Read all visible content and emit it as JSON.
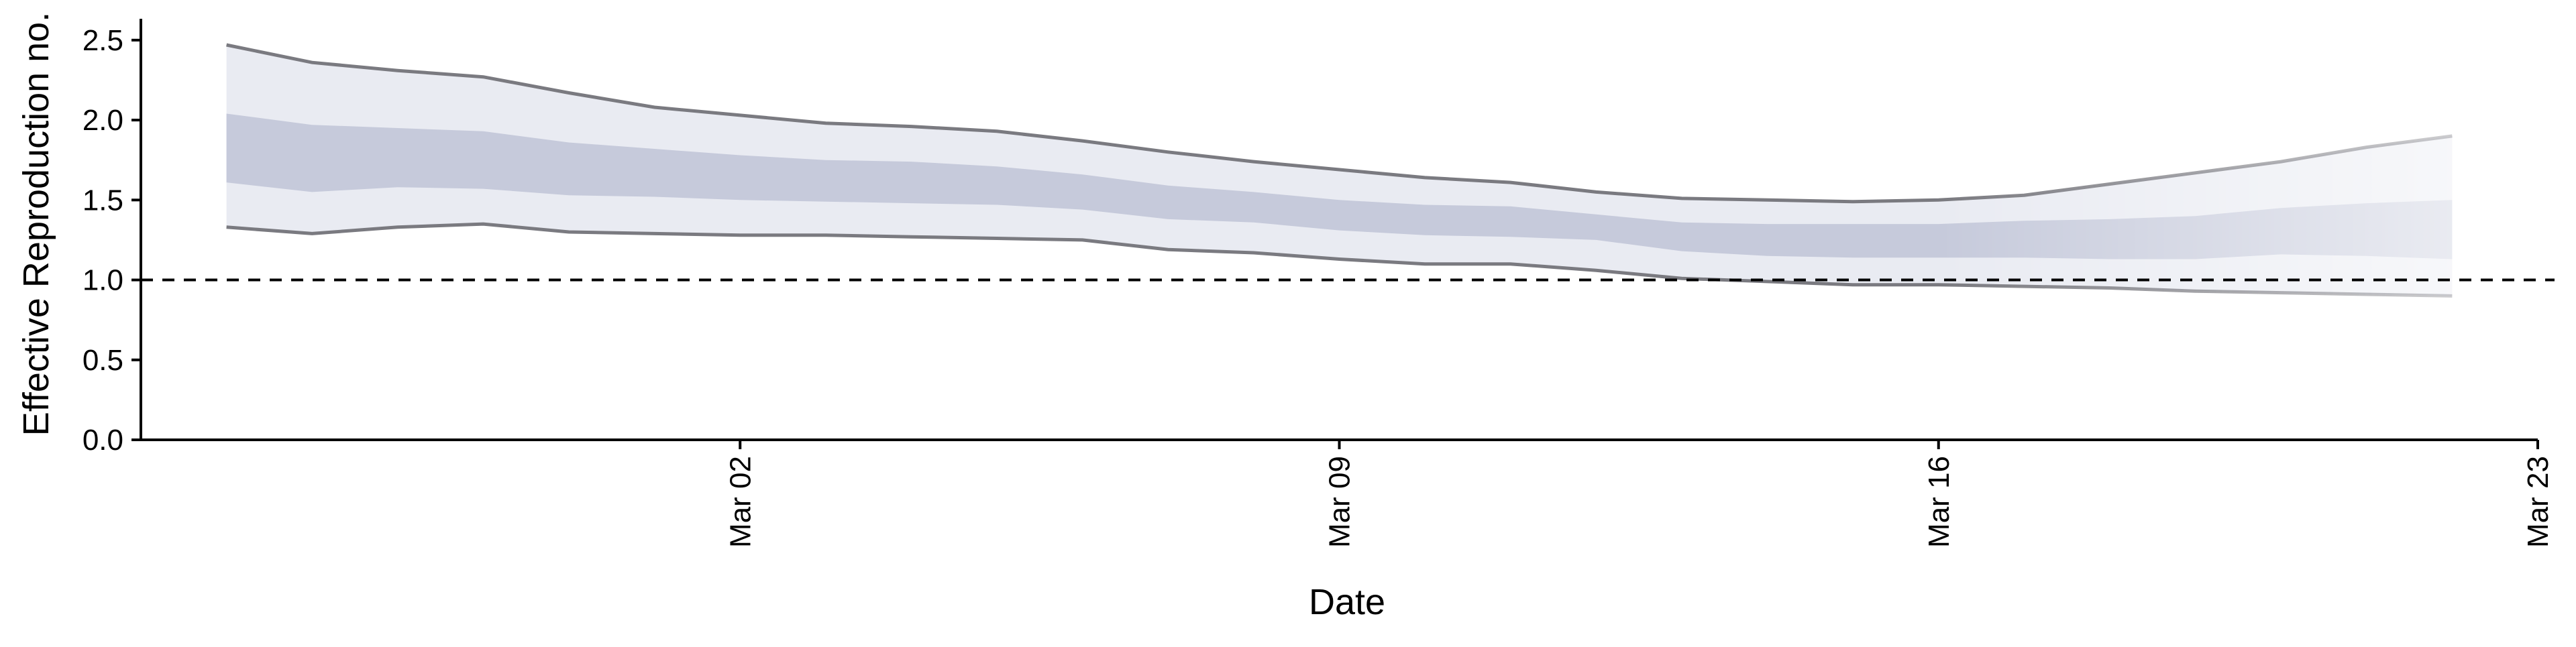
{
  "chart_data": {
    "type": "area",
    "title": "",
    "xlabel": "Date",
    "ylabel": "Effective Reproduction no.",
    "x_type": "date",
    "xlim": [
      "2020-02-24",
      "2020-03-23"
    ],
    "ylim": [
      0,
      2.6
    ],
    "x_ticks": [
      {
        "date": "2020-03-02",
        "label": "Mar 02"
      },
      {
        "date": "2020-03-09",
        "label": "Mar 09"
      },
      {
        "date": "2020-03-16",
        "label": "Mar 16"
      },
      {
        "date": "2020-03-23",
        "label": "Mar 23"
      }
    ],
    "y_ticks": [
      {
        "value": 0.0,
        "label": "0.0"
      },
      {
        "value": 0.5,
        "label": "0.5"
      },
      {
        "value": 1.0,
        "label": "1.0"
      },
      {
        "value": 1.5,
        "label": "1.5"
      },
      {
        "value": 2.0,
        "label": "2.0"
      },
      {
        "value": 2.5,
        "label": "2.5"
      }
    ],
    "reference_line": {
      "y": 1.0,
      "style": "dashed",
      "color": "#000000"
    },
    "grid": false,
    "legend": "none",
    "colors": {
      "outer_band": "#e9ebf2",
      "inner_band": "#c6cadb",
      "bound_line": "#7a7a80"
    },
    "fade_after_date": "2020-03-16",
    "series": [
      {
        "x": [
          "2020-02-25",
          "2020-02-26",
          "2020-02-27",
          "2020-02-28",
          "2020-02-29",
          "2020-03-01",
          "2020-03-02",
          "2020-03-03",
          "2020-03-04",
          "2020-03-05",
          "2020-03-06",
          "2020-03-07",
          "2020-03-08",
          "2020-03-09",
          "2020-03-10",
          "2020-03-11",
          "2020-03-12",
          "2020-03-13",
          "2020-03-14",
          "2020-03-15",
          "2020-03-16",
          "2020-03-17",
          "2020-03-18",
          "2020-03-19",
          "2020-03-20",
          "2020-03-21",
          "2020-03-22"
        ],
        "outer_upper": [
          2.47,
          2.36,
          2.31,
          2.27,
          2.17,
          2.08,
          2.03,
          1.98,
          1.96,
          1.93,
          1.87,
          1.8,
          1.74,
          1.69,
          1.64,
          1.61,
          1.55,
          1.51,
          1.5,
          1.49,
          1.5,
          1.53,
          1.6,
          1.67,
          1.74,
          1.83,
          1.9
        ],
        "inner_upper": [
          2.04,
          1.97,
          1.95,
          1.93,
          1.86,
          1.82,
          1.78,
          1.75,
          1.74,
          1.71,
          1.66,
          1.59,
          1.55,
          1.5,
          1.47,
          1.46,
          1.41,
          1.36,
          1.35,
          1.35,
          1.35,
          1.37,
          1.38,
          1.4,
          1.45,
          1.48,
          1.5
        ],
        "inner_lower": [
          1.61,
          1.55,
          1.58,
          1.57,
          1.53,
          1.52,
          1.5,
          1.49,
          1.48,
          1.47,
          1.44,
          1.38,
          1.36,
          1.31,
          1.28,
          1.27,
          1.25,
          1.18,
          1.15,
          1.14,
          1.14,
          1.14,
          1.13,
          1.13,
          1.16,
          1.15,
          1.13
        ],
        "outer_lower": [
          1.33,
          1.29,
          1.33,
          1.35,
          1.3,
          1.29,
          1.28,
          1.28,
          1.27,
          1.26,
          1.25,
          1.19,
          1.17,
          1.13,
          1.1,
          1.1,
          1.06,
          1.01,
          0.99,
          0.97,
          0.97,
          0.96,
          0.95,
          0.93,
          0.92,
          0.91,
          0.9
        ]
      }
    ]
  }
}
